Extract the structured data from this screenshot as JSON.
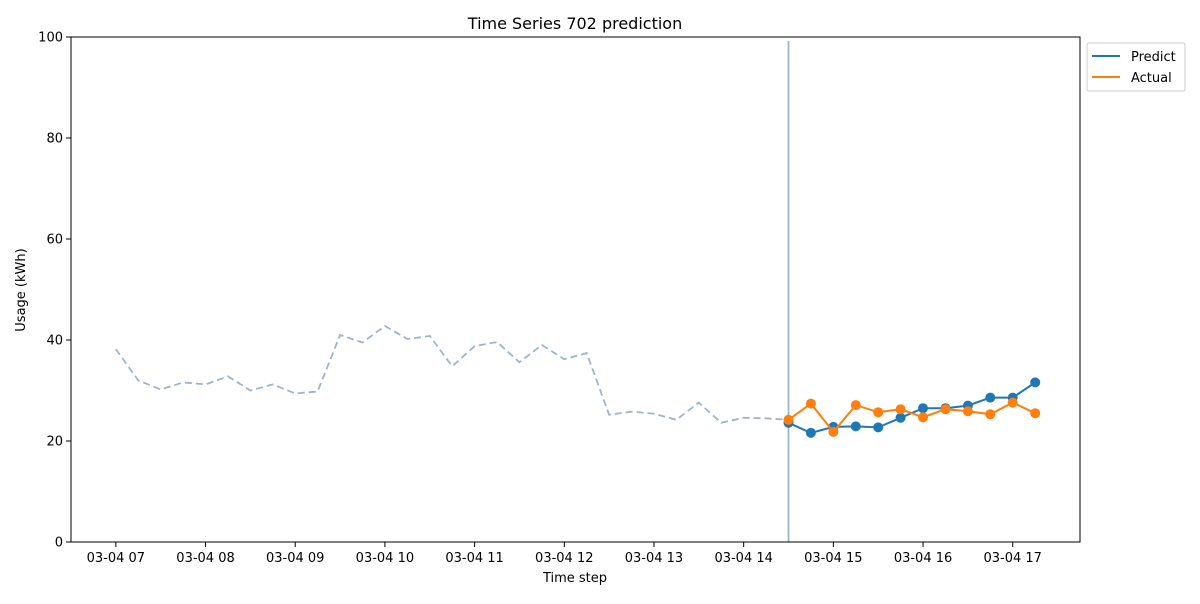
{
  "chart_data": {
    "type": "line",
    "title": "Time Series 702 prediction",
    "xlabel": "Time step",
    "ylabel": "Usage (kWh)",
    "ylim": [
      0,
      100
    ],
    "xlim_hours": [
      6.5,
      17.75
    ],
    "yticks": [
      "0",
      "20",
      "40",
      "60",
      "80",
      "100"
    ],
    "xticks": [
      {
        "label": "03-04 07",
        "hour": 7
      },
      {
        "label": "03-04 08",
        "hour": 8
      },
      {
        "label": "03-04 09",
        "hour": 9
      },
      {
        "label": "03-04 10",
        "hour": 10
      },
      {
        "label": "03-04 11",
        "hour": 11
      },
      {
        "label": "03-04 12",
        "hour": 12
      },
      {
        "label": "03-04 13",
        "hour": 13
      },
      {
        "label": "03-04 14",
        "hour": 14
      },
      {
        "label": "03-04 15",
        "hour": 15
      },
      {
        "label": "03-04 16",
        "hour": 16
      },
      {
        "label": "03-04 17",
        "hour": 17
      }
    ],
    "split_hour": 14.5,
    "history": {
      "hours": [
        7,
        7.25,
        7.5,
        7.75,
        8,
        8.25,
        8.5,
        8.75,
        9,
        9.25,
        9.5,
        9.75,
        10,
        10.25,
        10.5,
        10.75,
        11,
        11.25,
        11.5,
        11.75,
        12,
        12.25,
        12.5,
        12.75,
        13,
        13.25,
        13.5,
        13.75,
        14,
        14.25,
        14.5
      ],
      "values": [
        38.2,
        32.0,
        30.2,
        31.6,
        31.2,
        32.8,
        30.0,
        31.2,
        29.4,
        29.8,
        41.0,
        39.5,
        42.8,
        40.2,
        40.8,
        34.8,
        38.8,
        39.6,
        35.6,
        39.0,
        36.2,
        37.4,
        25.2,
        25.8,
        25.4,
        24.2,
        27.6,
        23.6,
        24.6,
        24.5,
        24.2
      ],
      "color": "#9fb3cc"
    },
    "forecast_hours": [
      14.5,
      14.75,
      15,
      15.25,
      15.5,
      15.75,
      16,
      16.25,
      16.5,
      16.75,
      17,
      17.25
    ],
    "series": [
      {
        "name": "Predict",
        "color": "#1f77b4",
        "values": [
          23.6,
          21.6,
          22.8,
          22.9,
          22.7,
          24.6,
          26.5,
          26.5,
          27.0,
          28.6,
          28.6,
          31.6
        ]
      },
      {
        "name": "Actual",
        "color": "#ff7f0e",
        "values": [
          24.2,
          27.4,
          21.8,
          27.1,
          25.7,
          26.3,
          24.7,
          26.3,
          25.9,
          25.3,
          27.6,
          25.5
        ]
      }
    ],
    "legend_position": "outside-top-right",
    "grid": false
  }
}
